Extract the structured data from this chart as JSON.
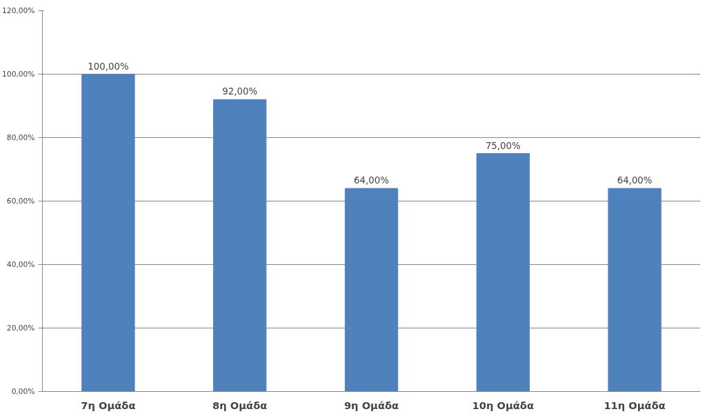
{
  "chart_data": {
    "type": "bar",
    "categories": [
      "7η Ομάδα",
      "8η Ομάδα",
      "9η Ομάδα",
      "10η Ομάδα",
      "11η Ομάδα"
    ],
    "values": [
      100,
      92,
      64,
      75,
      64
    ],
    "value_labels": [
      "100,00%",
      "92,00%",
      "64,00%",
      "75,00%",
      "64,00%"
    ],
    "color": "#4f81bd",
    "ylim": [
      0,
      120
    ],
    "yticks": [
      {
        "value": 0,
        "label": "0,00%"
      },
      {
        "value": 20,
        "label": "20,00%"
      },
      {
        "value": 40,
        "label": "40,00%"
      },
      {
        "value": 60,
        "label": "60,00%"
      },
      {
        "value": 80,
        "label": "80,00%"
      },
      {
        "value": 100,
        "label": "100,00%"
      },
      {
        "value": 120,
        "label": "120,00%"
      }
    ],
    "grid": "y"
  }
}
